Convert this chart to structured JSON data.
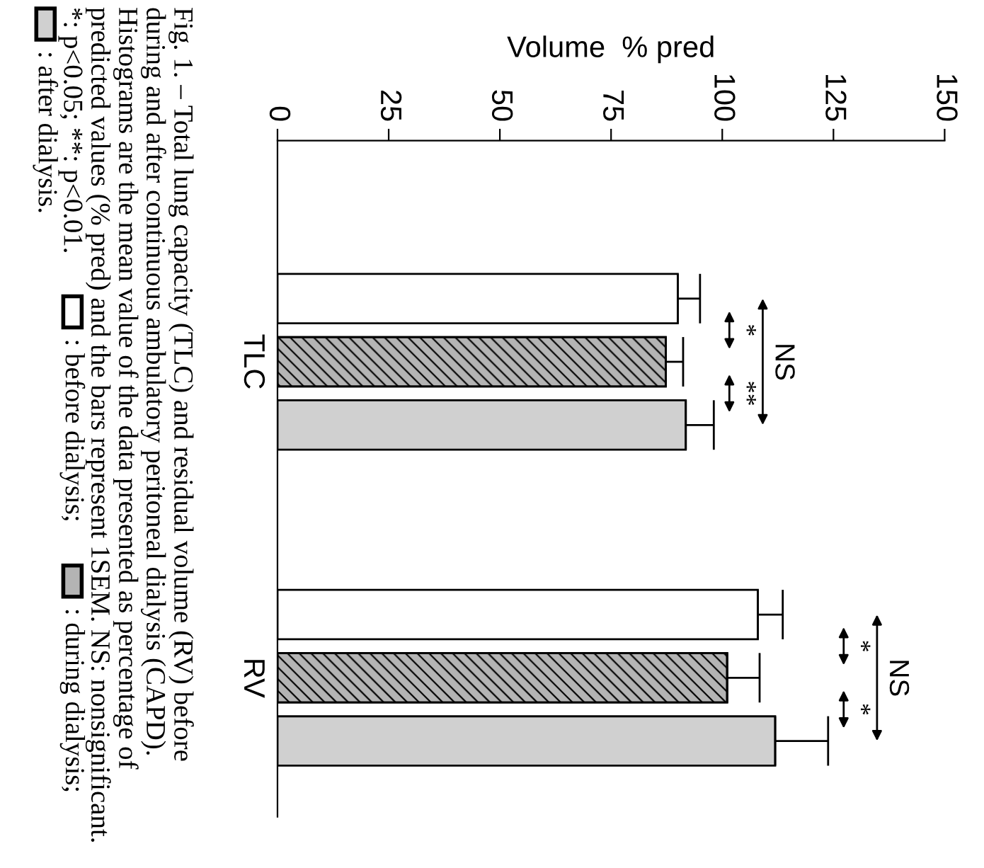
{
  "chart_data": {
    "type": "bar",
    "orientation": "horizontal",
    "xlabel": "Volume  % pred",
    "categories": [
      "TLC",
      "RV"
    ],
    "series": [
      {
        "name": ": before dialysis;",
        "color": "#ffffff",
        "values": [
          90,
          108
        ],
        "errors": [
          [
            90,
            95
          ],
          [
            108,
            113.6
          ]
        ]
      },
      {
        "name": ": during dialysis;",
        "color": "#b4b4b4",
        "values": [
          87.3,
          101.1
        ],
        "errors": [
          [
            87.3,
            91.2
          ],
          [
            101.1,
            108.4
          ]
        ]
      },
      {
        "name": ": after dialysis.",
        "color": "#d0d0d0",
        "values": [
          91.8,
          111.9
        ],
        "errors": [
          [
            91.8,
            98.1
          ],
          [
            111.9,
            123.8
          ]
        ]
      }
    ],
    "xlim": [
      0,
      150
    ],
    "xticks": [
      0,
      25,
      50,
      75,
      100,
      125,
      150
    ],
    "grid": false,
    "legend": "left",
    "annotations": [
      "*",
      "**",
      "NS",
      "*",
      "*",
      "NS",
      "Fig. 1. – Total lung capacity (TLC) and residual volume (RV) before\nduring and after continuous ambulatory peritoneal dialysis (CAPD).\nHistograms are the mean value of the data presented as percentage of\npredicted values (% pred) and the bars represent 1SEM. NS: nonsignificant.\n*: p<0.05; **: p<0.01."
    ]
  }
}
